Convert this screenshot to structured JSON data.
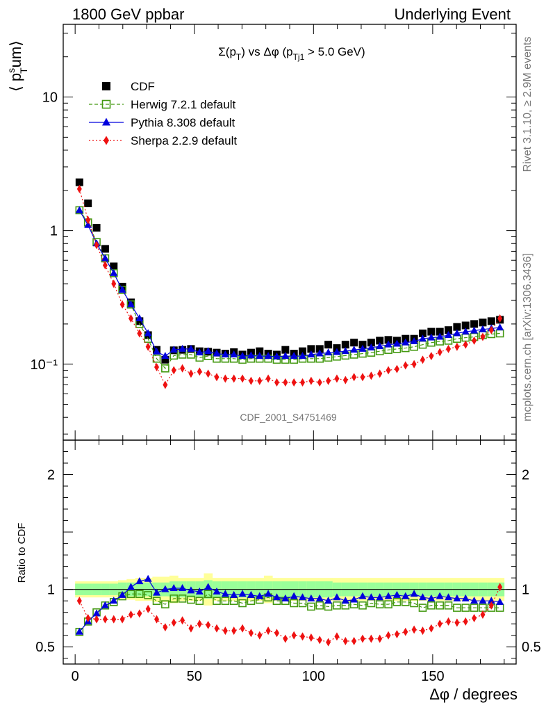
{
  "header": {
    "left": "1800 GeV ppbar",
    "right": "Underlying Event"
  },
  "side_labels": {
    "rivet": "Rivet 3.1.10, ≥ 2.9M events",
    "mcplots": "mcplots.cern.ch [arXiv:1306.3436]"
  },
  "chart_data": [
    {
      "type": "scatter",
      "panel": "main",
      "title": "Σ(p_T) vs Δφ (p_Tj1 > 5.0 GeV)",
      "ylabel": "⟨ p_T^s um⟩",
      "yscale": "log",
      "ylim": [
        0.027,
        35
      ],
      "xlim": [
        -5,
        185
      ],
      "y_ticks": [
        {
          "value": 10,
          "label": "10"
        },
        {
          "value": 1,
          "label": "1"
        },
        {
          "value": 0.1,
          "label": "10⁻¹"
        }
      ],
      "watermark": "CDF_2001_S4751469",
      "legend_position": "top-left",
      "x": [
        1.8,
        5.4,
        9.0,
        12.6,
        16.2,
        19.8,
        23.4,
        27.0,
        30.6,
        34.2,
        37.8,
        41.4,
        45.0,
        48.6,
        52.2,
        55.8,
        59.4,
        63.0,
        66.6,
        70.2,
        73.8,
        77.4,
        81.0,
        84.6,
        88.2,
        91.8,
        95.4,
        99.0,
        102.6,
        106.2,
        109.8,
        113.4,
        117.0,
        120.6,
        124.2,
        127.8,
        131.4,
        135.0,
        138.6,
        142.2,
        145.8,
        149.4,
        153.0,
        156.6,
        160.2,
        163.8,
        167.4,
        171.0,
        174.6,
        178.2
      ],
      "series": [
        {
          "name": "CDF",
          "color": "#000000",
          "marker": "filled-square",
          "values": [
            2.3,
            1.6,
            1.05,
            0.73,
            0.54,
            0.38,
            0.29,
            0.21,
            0.165,
            0.128,
            0.108,
            0.127,
            0.128,
            0.13,
            0.125,
            0.124,
            0.122,
            0.12,
            0.123,
            0.118,
            0.122,
            0.125,
            0.12,
            0.118,
            0.128,
            0.12,
            0.125,
            0.13,
            0.13,
            0.14,
            0.132,
            0.14,
            0.145,
            0.14,
            0.145,
            0.15,
            0.152,
            0.15,
            0.155,
            0.155,
            0.17,
            0.175,
            0.175,
            0.18,
            0.19,
            0.195,
            0.2,
            0.205,
            0.21,
            0.215
          ]
        },
        {
          "name": "Herwig 7.2.1 default",
          "color": "#449911",
          "marker": "open-square",
          "line": "dashed",
          "values": [
            1.42,
            1.15,
            0.82,
            0.62,
            0.48,
            0.36,
            0.28,
            0.2,
            0.155,
            0.11,
            0.093,
            0.116,
            0.118,
            0.118,
            0.112,
            0.115,
            0.11,
            0.11,
            0.11,
            0.108,
            0.11,
            0.11,
            0.11,
            0.108,
            0.108,
            0.108,
            0.11,
            0.11,
            0.11,
            0.112,
            0.114,
            0.116,
            0.118,
            0.12,
            0.122,
            0.125,
            0.128,
            0.13,
            0.132,
            0.135,
            0.14,
            0.145,
            0.148,
            0.15,
            0.155,
            0.158,
            0.16,
            0.165,
            0.168,
            0.17
          ]
        },
        {
          "name": "Pythia 8.308 default",
          "color": "#0000dd",
          "marker": "filled-triangle",
          "line": "solid",
          "values": [
            1.42,
            1.1,
            0.8,
            0.62,
            0.48,
            0.36,
            0.28,
            0.22,
            0.17,
            0.124,
            0.115,
            0.128,
            0.13,
            0.13,
            0.122,
            0.125,
            0.12,
            0.118,
            0.118,
            0.115,
            0.116,
            0.115,
            0.115,
            0.114,
            0.115,
            0.115,
            0.115,
            0.118,
            0.12,
            0.122,
            0.123,
            0.125,
            0.128,
            0.13,
            0.133,
            0.136,
            0.14,
            0.142,
            0.145,
            0.148,
            0.155,
            0.158,
            0.16,
            0.165,
            0.17,
            0.175,
            0.178,
            0.182,
            0.185,
            0.188
          ]
        },
        {
          "name": "Sherpa 2.2.9 default",
          "color": "#ee1111",
          "marker": "filled-diamond",
          "line": "dotted",
          "values": [
            2.05,
            1.2,
            0.78,
            0.55,
            0.4,
            0.28,
            0.22,
            0.17,
            0.135,
            0.095,
            0.07,
            0.09,
            0.093,
            0.085,
            0.088,
            0.085,
            0.08,
            0.078,
            0.078,
            0.078,
            0.075,
            0.075,
            0.078,
            0.073,
            0.073,
            0.073,
            0.073,
            0.075,
            0.073,
            0.075,
            0.078,
            0.076,
            0.08,
            0.08,
            0.082,
            0.085,
            0.09,
            0.092,
            0.098,
            0.1,
            0.108,
            0.115,
            0.123,
            0.13,
            0.135,
            0.14,
            0.15,
            0.16,
            0.18,
            0.22
          ]
        }
      ]
    },
    {
      "type": "scatter",
      "panel": "ratio",
      "ylabel": "Ratio to CDF",
      "xlabel": "Δφ / degrees",
      "ylim": [
        0.35,
        2.3
      ],
      "xlim": [
        -5,
        185
      ],
      "y_ticks": [
        {
          "value": 2,
          "label": "2"
        },
        {
          "value": 1,
          "label": "1"
        },
        {
          "value": 0.5,
          "label": "0.5"
        }
      ],
      "x_ticks": [
        {
          "value": 0,
          "label": "0"
        },
        {
          "value": 50,
          "label": "50"
        },
        {
          "value": 100,
          "label": "100"
        },
        {
          "value": 150,
          "label": "150"
        }
      ],
      "reference_line": 1,
      "band_inner": [
        0.05,
        0.05,
        0.05,
        0.05,
        0.05,
        0.06,
        0.06,
        0.06,
        0.06,
        0.06,
        0.06,
        0.07,
        0.07,
        0.07,
        0.07,
        0.08,
        0.07,
        0.07,
        0.07,
        0.07,
        0.07,
        0.07,
        0.07,
        0.07,
        0.07,
        0.07,
        0.07,
        0.07,
        0.07,
        0.07,
        0.06,
        0.06,
        0.06,
        0.06,
        0.06,
        0.06,
        0.06,
        0.06,
        0.06,
        0.06,
        0.06,
        0.06,
        0.06,
        0.06,
        0.06,
        0.06,
        0.06,
        0.06,
        0.06,
        0.06
      ],
      "band_outer": [
        0.07,
        0.07,
        0.07,
        0.07,
        0.07,
        0.08,
        0.09,
        0.1,
        0.1,
        0.11,
        0.11,
        0.12,
        0.1,
        0.1,
        0.1,
        0.14,
        0.1,
        0.1,
        0.1,
        0.1,
        0.1,
        0.1,
        0.12,
        0.1,
        0.1,
        0.1,
        0.1,
        0.1,
        0.1,
        0.1,
        0.1,
        0.1,
        0.1,
        0.1,
        0.1,
        0.1,
        0.1,
        0.1,
        0.1,
        0.1,
        0.1,
        0.1,
        0.1,
        0.1,
        0.1,
        0.1,
        0.1,
        0.1,
        0.1,
        0.1
      ],
      "series": [
        {
          "name": "Herwig 7.2.1 default",
          "color": "#449911",
          "marker": "open-square",
          "line": "dashed",
          "values": [
            0.63,
            0.72,
            0.8,
            0.86,
            0.89,
            0.94,
            0.96,
            0.96,
            0.95,
            0.9,
            0.87,
            0.92,
            0.92,
            0.91,
            0.9,
            0.96,
            0.9,
            0.9,
            0.9,
            0.88,
            0.9,
            0.91,
            0.93,
            0.9,
            0.9,
            0.88,
            0.88,
            0.85,
            0.86,
            0.85,
            0.86,
            0.86,
            0.87,
            0.86,
            0.88,
            0.87,
            0.87,
            0.89,
            0.89,
            0.88,
            0.84,
            0.86,
            0.86,
            0.86,
            0.84,
            0.84,
            0.84,
            0.84,
            0.84,
            0.84
          ]
        },
        {
          "name": "Pythia 8.308 default",
          "color": "#0000dd",
          "marker": "filled-triangle",
          "line": "solid",
          "values": [
            0.63,
            0.72,
            0.79,
            0.86,
            0.9,
            0.95,
            1.02,
            1.07,
            1.09,
            0.97,
            1.0,
            1.01,
            1.01,
            0.99,
            0.98,
            1.02,
            0.98,
            0.96,
            0.95,
            0.96,
            0.95,
            0.94,
            0.96,
            0.93,
            0.92,
            0.94,
            0.93,
            0.92,
            0.92,
            0.9,
            0.93,
            0.9,
            0.91,
            0.94,
            0.93,
            0.93,
            0.94,
            0.95,
            0.94,
            0.96,
            0.93,
            0.92,
            0.94,
            0.93,
            0.92,
            0.92,
            0.9,
            0.9,
            0.9,
            0.89
          ]
        },
        {
          "name": "Sherpa 2.2.9 default",
          "color": "#ee1111",
          "marker": "filled-diamond",
          "line": "dotted",
          "values": [
            0.9,
            0.75,
            0.74,
            0.74,
            0.74,
            0.74,
            0.78,
            0.79,
            0.83,
            0.74,
            0.67,
            0.71,
            0.73,
            0.66,
            0.7,
            0.69,
            0.66,
            0.64,
            0.64,
            0.66,
            0.62,
            0.6,
            0.64,
            0.62,
            0.57,
            0.6,
            0.59,
            0.58,
            0.56,
            0.54,
            0.59,
            0.55,
            0.55,
            0.57,
            0.57,
            0.57,
            0.6,
            0.61,
            0.63,
            0.65,
            0.64,
            0.66,
            0.7,
            0.72,
            0.71,
            0.72,
            0.75,
            0.78,
            0.86,
            1.02
          ]
        }
      ]
    }
  ]
}
